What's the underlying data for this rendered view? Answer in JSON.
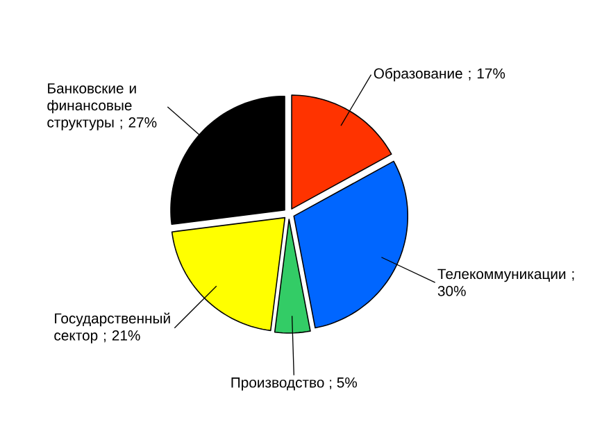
{
  "chart_data": {
    "type": "pie",
    "categories": [
      "Образование",
      "Телекоммуникации",
      "Производство",
      "Государственный сектор",
      "Банковские и финансовые структуры"
    ],
    "values": [
      17,
      30,
      5,
      21,
      27
    ],
    "value_labels": [
      "; 17%",
      "; 30%",
      "; 5%",
      "; 21%",
      "; 27%"
    ],
    "colors": [
      "#ff3300",
      "#0066ff",
      "#33cc66",
      "#ffff00",
      "#000000"
    ]
  }
}
